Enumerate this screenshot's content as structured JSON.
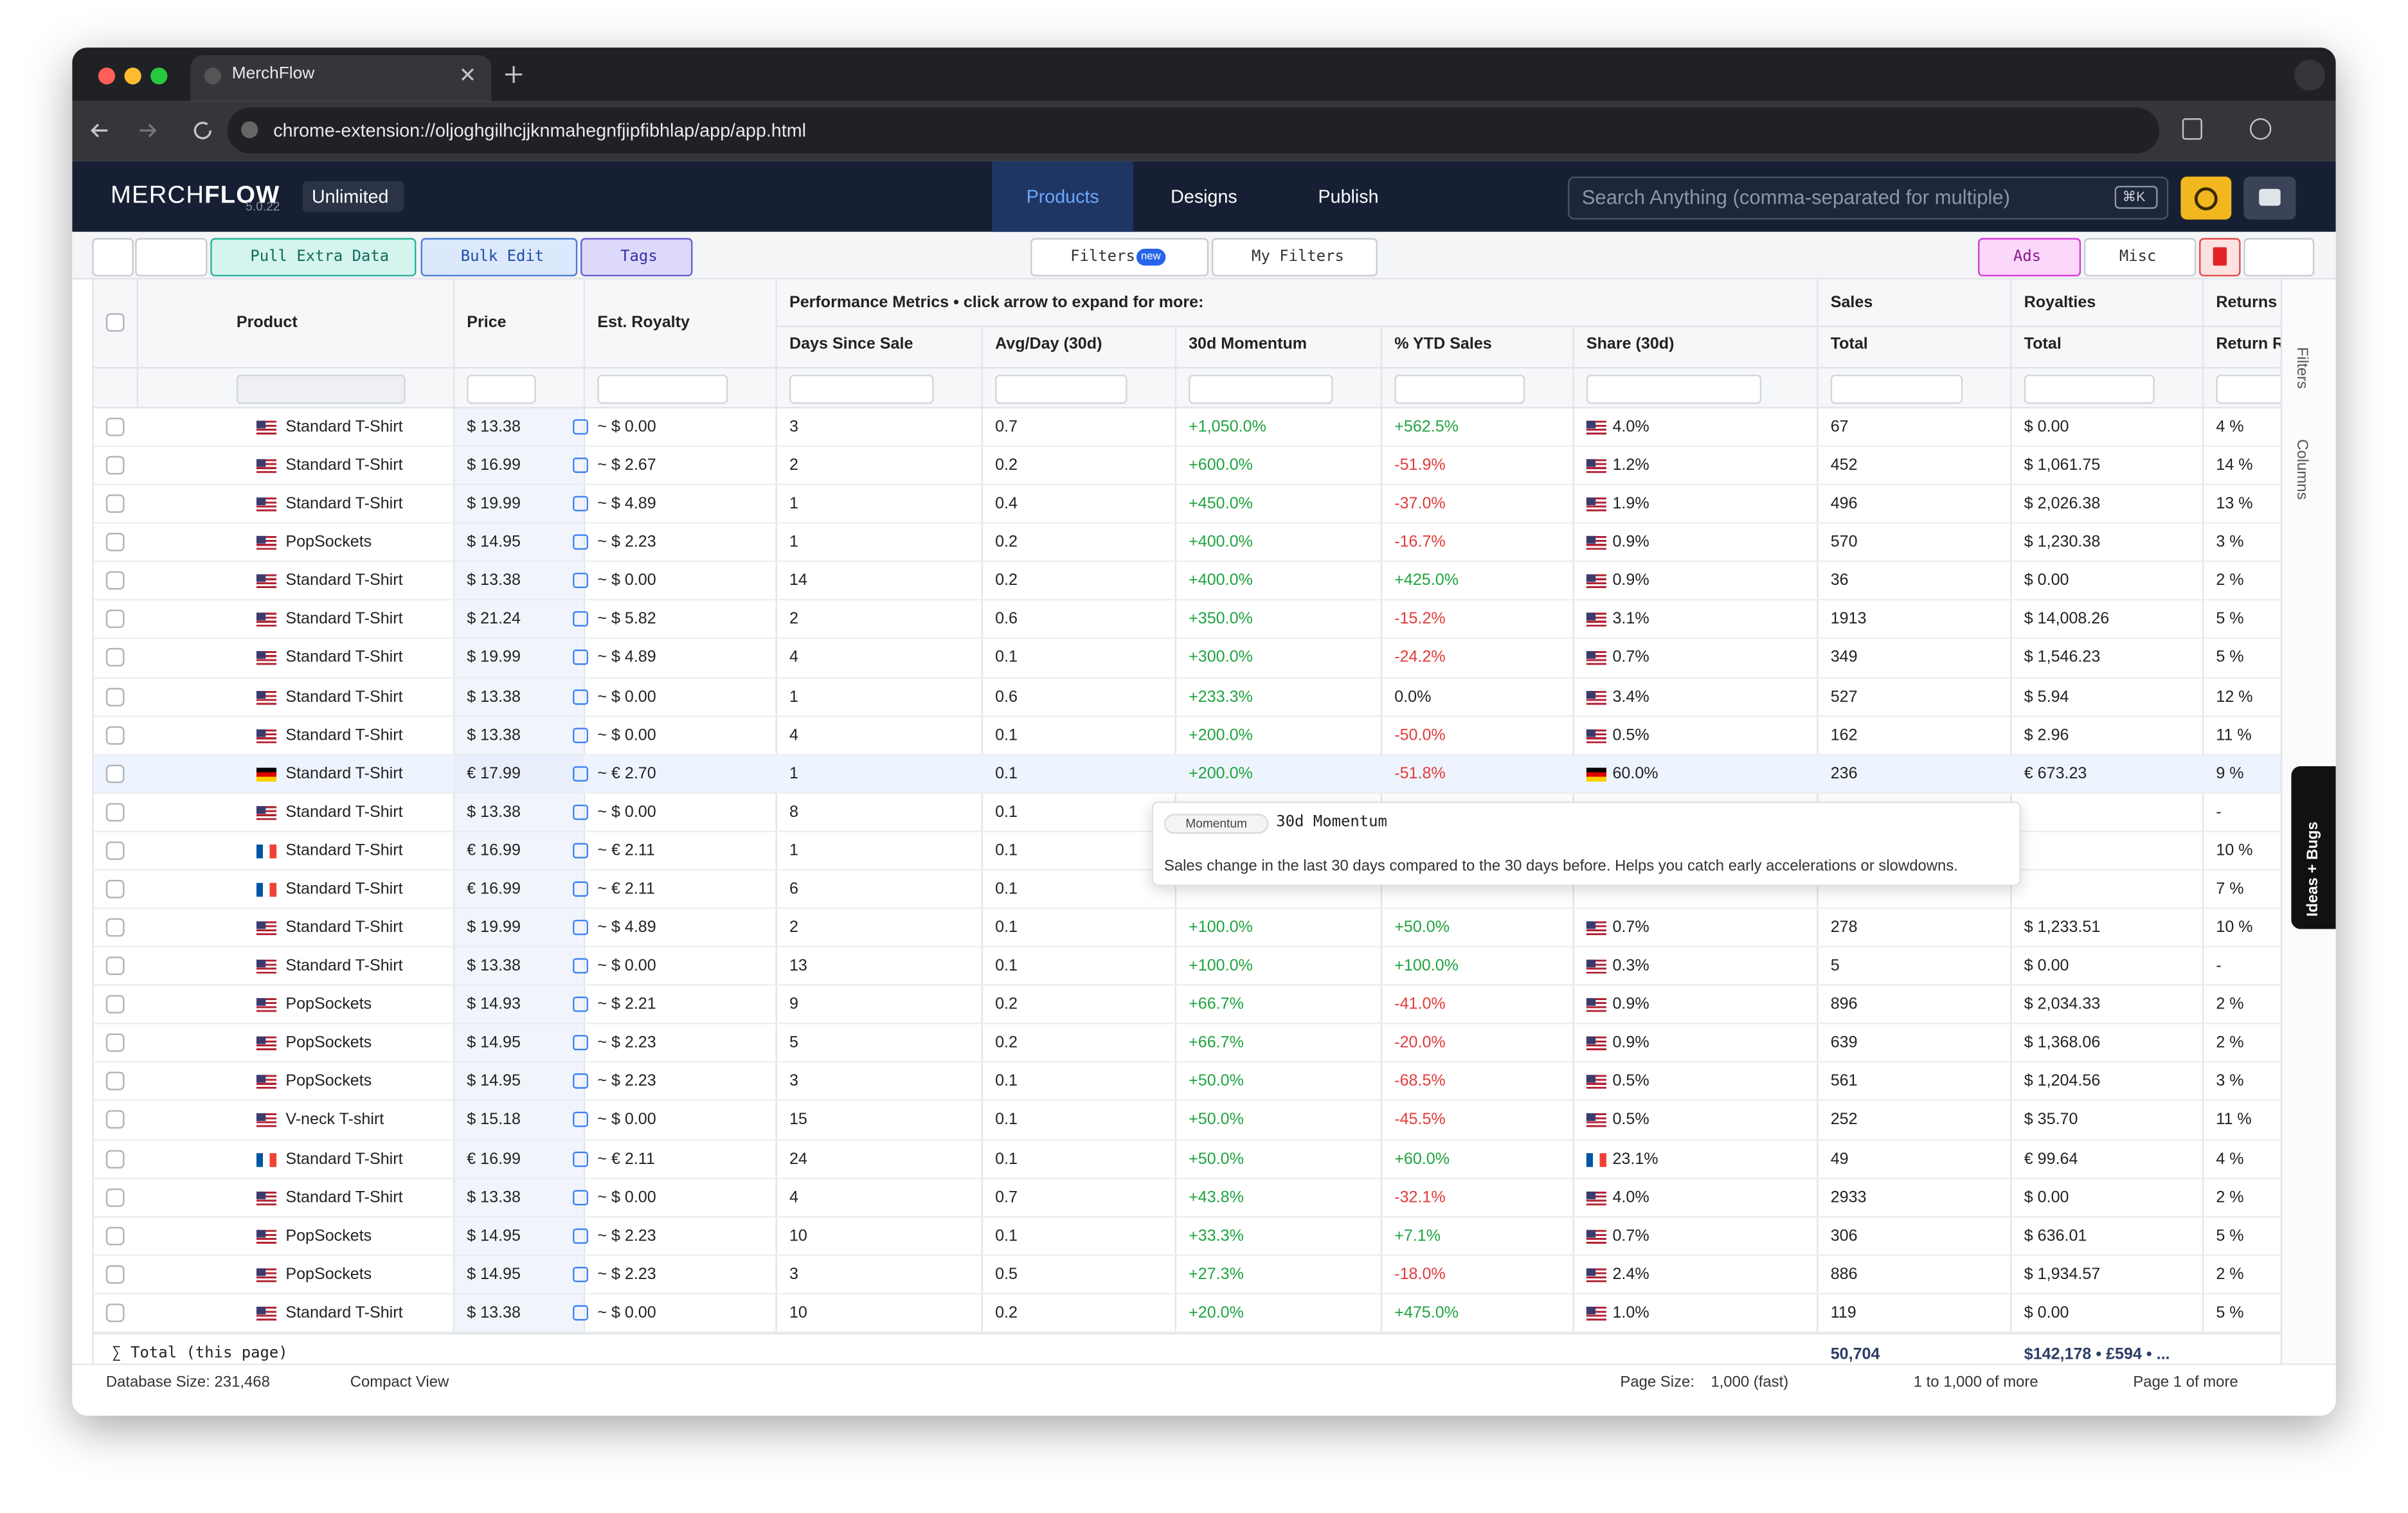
{
  "browser": {
    "tab_title": "MerchFlow",
    "url": "chrome-extension://oljoghgilhcjjknmahegnfjipfibhlap/app/app.html"
  },
  "app": {
    "brand_light": "MERCH",
    "brand_bold": "FLOW",
    "version": "5.0.22",
    "plan": "Unlimited",
    "nav": [
      "Products",
      "Designs",
      "Publish"
    ],
    "active_nav": 0,
    "search_placeholder": "Search Anything (comma-separated for multiple)",
    "search_shortcut": "⌘K"
  },
  "toolbar": {
    "left": [
      "Pull Extra Data",
      "Bulk Edit",
      "Tags"
    ],
    "center": [
      "Filters",
      "My Filters"
    ],
    "filters_badge": "new",
    "right": [
      "Ads",
      "Misc"
    ]
  },
  "table": {
    "group_headers": [
      "Performance Metrics • click arrow to expand for more:",
      "Sales",
      "Royalties",
      "Returns"
    ],
    "columns": [
      "Product",
      "Price",
      "Est. Royalty",
      "Days Since Sale",
      "Avg/Day (30d)",
      "30d Momentum",
      "% YTD Sales",
      "Share (30d)",
      "Total",
      "Total",
      "Return Rate"
    ],
    "highlighted_row": 9,
    "rows": [
      {
        "market": "us",
        "cells": [
          "Standard T-Shirt",
          "$ 13.38",
          "~ $ 0.00",
          "3",
          "0.7",
          "+1,050.0%",
          "+562.5%",
          "4.0%",
          "67",
          "$ 0.00",
          "4 %"
        ]
      },
      {
        "market": "us",
        "cells": [
          "Standard T-Shirt",
          "$ 16.99",
          "~ $ 2.67",
          "2",
          "0.2",
          "+600.0%",
          "-51.9%",
          "1.2%",
          "452",
          "$ 1,061.75",
          "14 %"
        ]
      },
      {
        "market": "us",
        "cells": [
          "Standard T-Shirt",
          "$ 19.99",
          "~ $ 4.89",
          "1",
          "0.4",
          "+450.0%",
          "-37.0%",
          "1.9%",
          "496",
          "$ 2,026.38",
          "13 %"
        ]
      },
      {
        "market": "us",
        "cells": [
          "PopSockets",
          "$ 14.95",
          "~ $ 2.23",
          "1",
          "0.2",
          "+400.0%",
          "-16.7%",
          "0.9%",
          "570",
          "$ 1,230.38",
          "3 %"
        ]
      },
      {
        "market": "us",
        "cells": [
          "Standard T-Shirt",
          "$ 13.38",
          "~ $ 0.00",
          "14",
          "0.2",
          "+400.0%",
          "+425.0%",
          "0.9%",
          "36",
          "$ 0.00",
          "2 %"
        ]
      },
      {
        "market": "us",
        "cells": [
          "Standard T-Shirt",
          "$ 21.24",
          "~ $ 5.82",
          "2",
          "0.6",
          "+350.0%",
          "-15.2%",
          "3.1%",
          "1913",
          "$ 14,008.26",
          "5 %"
        ]
      },
      {
        "market": "us",
        "cells": [
          "Standard T-Shirt",
          "$ 19.99",
          "~ $ 4.89",
          "4",
          "0.1",
          "+300.0%",
          "-24.2%",
          "0.7%",
          "349",
          "$ 1,546.23",
          "5 %"
        ]
      },
      {
        "market": "us",
        "cells": [
          "Standard T-Shirt",
          "$ 13.38",
          "~ $ 0.00",
          "1",
          "0.6",
          "+233.3%",
          "0.0%",
          "3.4%",
          "527",
          "$ 5.94",
          "12 %"
        ]
      },
      {
        "market": "us",
        "cells": [
          "Standard T-Shirt",
          "$ 13.38",
          "~ $ 0.00",
          "4",
          "0.1",
          "+200.0%",
          "-50.0%",
          "0.5%",
          "162",
          "$ 2.96",
          "11 %"
        ]
      },
      {
        "market": "de",
        "cells": [
          "Standard T-Shirt",
          "€ 17.99",
          "~ € 2.70",
          "1",
          "0.1",
          "+200.0%",
          "-51.8%",
          "60.0%",
          "236",
          "€ 673.23",
          "9 %"
        ]
      },
      {
        "market": "us",
        "cells": [
          "Standard T-Shirt",
          "$ 13.38",
          "~ $ 0.00",
          "8",
          "0.1",
          null,
          null,
          null,
          null,
          null,
          "-"
        ]
      },
      {
        "market": "fr",
        "cells": [
          "Standard T-Shirt",
          "€ 16.99",
          "~ € 2.11",
          "1",
          "0.1",
          null,
          null,
          null,
          null,
          null,
          "10 %"
        ]
      },
      {
        "market": "fr",
        "cells": [
          "Standard T-Shirt",
          "€ 16.99",
          "~ € 2.11",
          "6",
          "0.1",
          null,
          null,
          null,
          null,
          null,
          "7 %"
        ]
      },
      {
        "market": "us",
        "cells": [
          "Standard T-Shirt",
          "$ 19.99",
          "~ $ 4.89",
          "2",
          "0.1",
          "+100.0%",
          "+50.0%",
          "0.7%",
          "278",
          "$ 1,233.51",
          "10 %"
        ]
      },
      {
        "market": "us",
        "cells": [
          "Standard T-Shirt",
          "$ 13.38",
          "~ $ 0.00",
          "13",
          "0.1",
          "+100.0%",
          "+100.0%",
          "0.3%",
          "5",
          "$ 0.00",
          "-"
        ]
      },
      {
        "market": "us",
        "cells": [
          "PopSockets",
          "$ 14.93",
          "~ $ 2.21",
          "9",
          "0.2",
          "+66.7%",
          "-41.0%",
          "0.9%",
          "896",
          "$ 2,034.33",
          "2 %"
        ]
      },
      {
        "market": "us",
        "cells": [
          "PopSockets",
          "$ 14.95",
          "~ $ 2.23",
          "5",
          "0.2",
          "+66.7%",
          "-20.0%",
          "0.9%",
          "639",
          "$ 1,368.06",
          "2 %"
        ]
      },
      {
        "market": "us",
        "cells": [
          "PopSockets",
          "$ 14.95",
          "~ $ 2.23",
          "3",
          "0.1",
          "+50.0%",
          "-68.5%",
          "0.5%",
          "561",
          "$ 1,204.56",
          "3 %"
        ]
      },
      {
        "market": "us",
        "cells": [
          "V-neck T-shirt",
          "$ 15.18",
          "~ $ 0.00",
          "15",
          "0.1",
          "+50.0%",
          "-45.5%",
          "0.5%",
          "252",
          "$ 35.70",
          "11 %"
        ]
      },
      {
        "market": "fr",
        "cells": [
          "Standard T-Shirt",
          "€ 16.99",
          "~ € 2.11",
          "24",
          "0.1",
          "+50.0%",
          "+60.0%",
          "23.1%",
          "49",
          "€ 99.64",
          "4 %"
        ]
      },
      {
        "market": "us",
        "cells": [
          "Standard T-Shirt",
          "$ 13.38",
          "~ $ 0.00",
          "4",
          "0.7",
          "+43.8%",
          "-32.1%",
          "4.0%",
          "2933",
          "$ 0.00",
          "2 %"
        ]
      },
      {
        "market": "us",
        "cells": [
          "PopSockets",
          "$ 14.95",
          "~ $ 2.23",
          "10",
          "0.1",
          "+33.3%",
          "+7.1%",
          "0.7%",
          "306",
          "$ 636.01",
          "5 %"
        ]
      },
      {
        "market": "us",
        "cells": [
          "PopSockets",
          "$ 14.95",
          "~ $ 2.23",
          "3",
          "0.5",
          "+27.3%",
          "-18.0%",
          "2.4%",
          "886",
          "$ 1,934.57",
          "2 %"
        ]
      },
      {
        "market": "us",
        "cells": [
          "Standard T-Shirt",
          "$ 13.38",
          "~ $ 0.00",
          "10",
          "0.2",
          "+20.0%",
          "+475.0%",
          "1.0%",
          "119",
          "$ 0.00",
          "5 %"
        ]
      }
    ],
    "totals": {
      "label": "∑ Total (this page)",
      "sales": "50,704",
      "royalties": "$142,178 • £594 • ..."
    }
  },
  "tooltip": {
    "badge": "Momentum",
    "title": "30d Momentum",
    "text": "Sales change in the last 30 days compared to the 30 days before. Helps you catch early accelerations or slowdowns."
  },
  "sidebar": [
    "Filters",
    "Columns"
  ],
  "feedback": "Ideas + Bugs",
  "status": {
    "database_size": "Database Size: 231,468",
    "view": "Compact View",
    "page_size_label": "Page Size:",
    "page_size": "1,000 (fast)",
    "range": "1 to 1,000 of more",
    "page": "Page 1 of more"
  }
}
